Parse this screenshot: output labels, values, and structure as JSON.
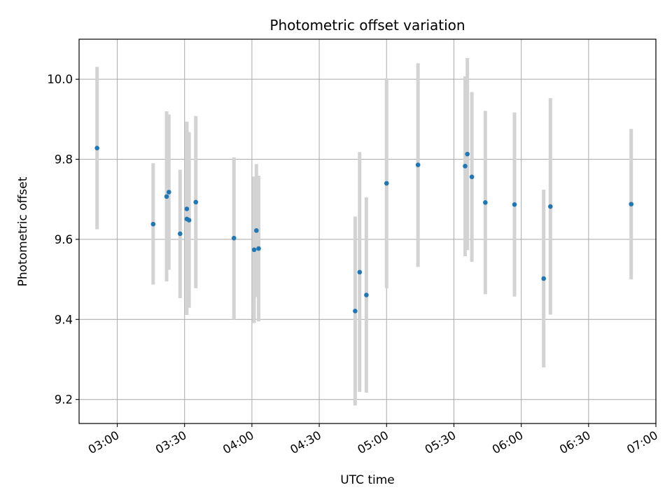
{
  "chart_data": {
    "type": "scatter",
    "title": "Photometric offset variation",
    "xlabel": "UTC time",
    "ylabel": "Photometric offset",
    "x_tick_labels": [
      "03:00",
      "03:30",
      "04:00",
      "04:30",
      "05:00",
      "05:30",
      "06:00",
      "06:30",
      "07:00"
    ],
    "y_tick_labels": [
      "9.2",
      "9.4",
      "9.6",
      "9.8",
      "10.0"
    ],
    "xlim": [
      "02:43",
      "07:00"
    ],
    "ylim": [
      9.14,
      10.1
    ],
    "grid": true,
    "marker_color": "#1f77b4",
    "errorbar_color": "#d3d3d3",
    "series": [
      {
        "points": [
          {
            "t": "02:51",
            "y": 9.828,
            "lo": 9.625,
            "hi": 10.031
          },
          {
            "t": "03:16",
            "y": 9.638,
            "lo": 9.487,
            "hi": 9.79
          },
          {
            "t": "03:22",
            "y": 9.707,
            "lo": 9.495,
            "hi": 9.92
          },
          {
            "t": "03:23",
            "y": 9.718,
            "lo": 9.524,
            "hi": 9.912
          },
          {
            "t": "03:28",
            "y": 9.614,
            "lo": 9.453,
            "hi": 9.774
          },
          {
            "t": "03:31",
            "y": 9.676,
            "lo": 9.462,
            "hi": 9.891
          },
          {
            "t": "03:31",
            "y": 9.651,
            "lo": 9.411,
            "hi": 9.894
          },
          {
            "t": "03:32",
            "y": 9.648,
            "lo": 9.429,
            "hi": 9.868
          },
          {
            "t": "03:35",
            "y": 9.693,
            "lo": 9.478,
            "hi": 9.908
          },
          {
            "t": "03:52",
            "y": 9.603,
            "lo": 9.4,
            "hi": 9.805
          },
          {
            "t": "04:01",
            "y": 9.574,
            "lo": 9.391,
            "hi": 9.757
          },
          {
            "t": "04:02",
            "y": 9.622,
            "lo": 9.456,
            "hi": 9.788
          },
          {
            "t": "04:03",
            "y": 9.577,
            "lo": 9.395,
            "hi": 9.759
          },
          {
            "t": "04:46",
            "y": 9.421,
            "lo": 9.185,
            "hi": 9.657
          },
          {
            "t": "04:48",
            "y": 9.518,
            "lo": 9.219,
            "hi": 9.818
          },
          {
            "t": "04:51",
            "y": 9.461,
            "lo": 9.217,
            "hi": 9.705
          },
          {
            "t": "05:00",
            "y": 9.74,
            "lo": 9.478,
            "hi": 10.002
          },
          {
            "t": "05:14",
            "y": 9.786,
            "lo": 9.531,
            "hi": 10.04
          },
          {
            "t": "05:35",
            "y": 9.783,
            "lo": 9.558,
            "hi": 10.007
          },
          {
            "t": "05:36",
            "y": 9.813,
            "lo": 9.573,
            "hi": 10.053
          },
          {
            "t": "05:38",
            "y": 9.756,
            "lo": 9.544,
            "hi": 9.968
          },
          {
            "t": "05:44",
            "y": 9.692,
            "lo": 9.463,
            "hi": 9.921
          },
          {
            "t": "05:57",
            "y": 9.687,
            "lo": 9.457,
            "hi": 9.917
          },
          {
            "t": "06:10",
            "y": 9.502,
            "lo": 9.28,
            "hi": 9.724
          },
          {
            "t": "06:13",
            "y": 9.682,
            "lo": 9.412,
            "hi": 9.953
          },
          {
            "t": "06:49",
            "y": 9.688,
            "lo": 9.5,
            "hi": 9.876
          }
        ]
      }
    ]
  }
}
